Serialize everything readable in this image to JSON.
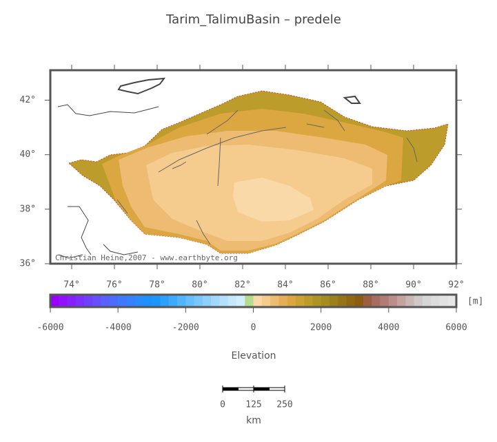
{
  "title": "Tarim_TalimuBasin – predele",
  "map": {
    "lonlim": [
      73,
      92
    ],
    "latlim": [
      36,
      43.1
    ],
    "lon_ticks": [
      {
        "value": 74,
        "label": "74°"
      },
      {
        "value": 76,
        "label": "76°"
      },
      {
        "value": 78,
        "label": "78°"
      },
      {
        "value": 80,
        "label": "80°"
      },
      {
        "value": 82,
        "label": "82°"
      },
      {
        "value": 84,
        "label": "84°"
      },
      {
        "value": 86,
        "label": "86°"
      },
      {
        "value": 88,
        "label": "88°"
      },
      {
        "value": 90,
        "label": "90°"
      },
      {
        "value": 92,
        "label": "92°"
      }
    ],
    "lat_ticks": [
      {
        "value": 36,
        "label": "36°"
      },
      {
        "value": 38,
        "label": "38°"
      },
      {
        "value": 40,
        "label": "40°"
      },
      {
        "value": 42,
        "label": "42°"
      }
    ],
    "credit": "Christian Heine,2007 - www.earthbyte.org"
  },
  "colorbar": {
    "label": "Elevation",
    "unit": "[m]",
    "lim": [
      -6000,
      6000
    ],
    "ticks": [
      -6000,
      -4000,
      -2000,
      0,
      2000,
      4000,
      6000
    ],
    "palette": [
      "#9900ff",
      "#9010ff",
      "#8620ff",
      "#7c30ff",
      "#7040ff",
      "#6450ff",
      "#5860ff",
      "#4c6cff",
      "#4078ff",
      "#3482ff",
      "#288cff",
      "#1e90ff",
      "#1c96ff",
      "#2ca0ff",
      "#3eaaff",
      "#52b4ff",
      "#66beff",
      "#7ac6ff",
      "#8ecfff",
      "#a2d8ff",
      "#b4e0ff",
      "#c4e8fc",
      "#d2eefa",
      "#b4dc8c",
      "#fad9a8",
      "#f5cc8e",
      "#edbc72",
      "#e6ae58",
      "#dca640",
      "#cca232",
      "#bc9c2a",
      "#ae9424",
      "#a48c1e",
      "#9c801a",
      "#967416",
      "#906812",
      "#8c5c10",
      "#9c5e40",
      "#a86c62",
      "#b27c76",
      "#bc8e8a",
      "#c4a29e",
      "#cab6b4",
      "#d0c8c8",
      "#d6d6d6",
      "#dcdcdc",
      "#e2e2e2",
      "#e6e6e6"
    ]
  },
  "scale_bar": {
    "unit": "km",
    "ticks": [
      0,
      125,
      250
    ]
  }
}
